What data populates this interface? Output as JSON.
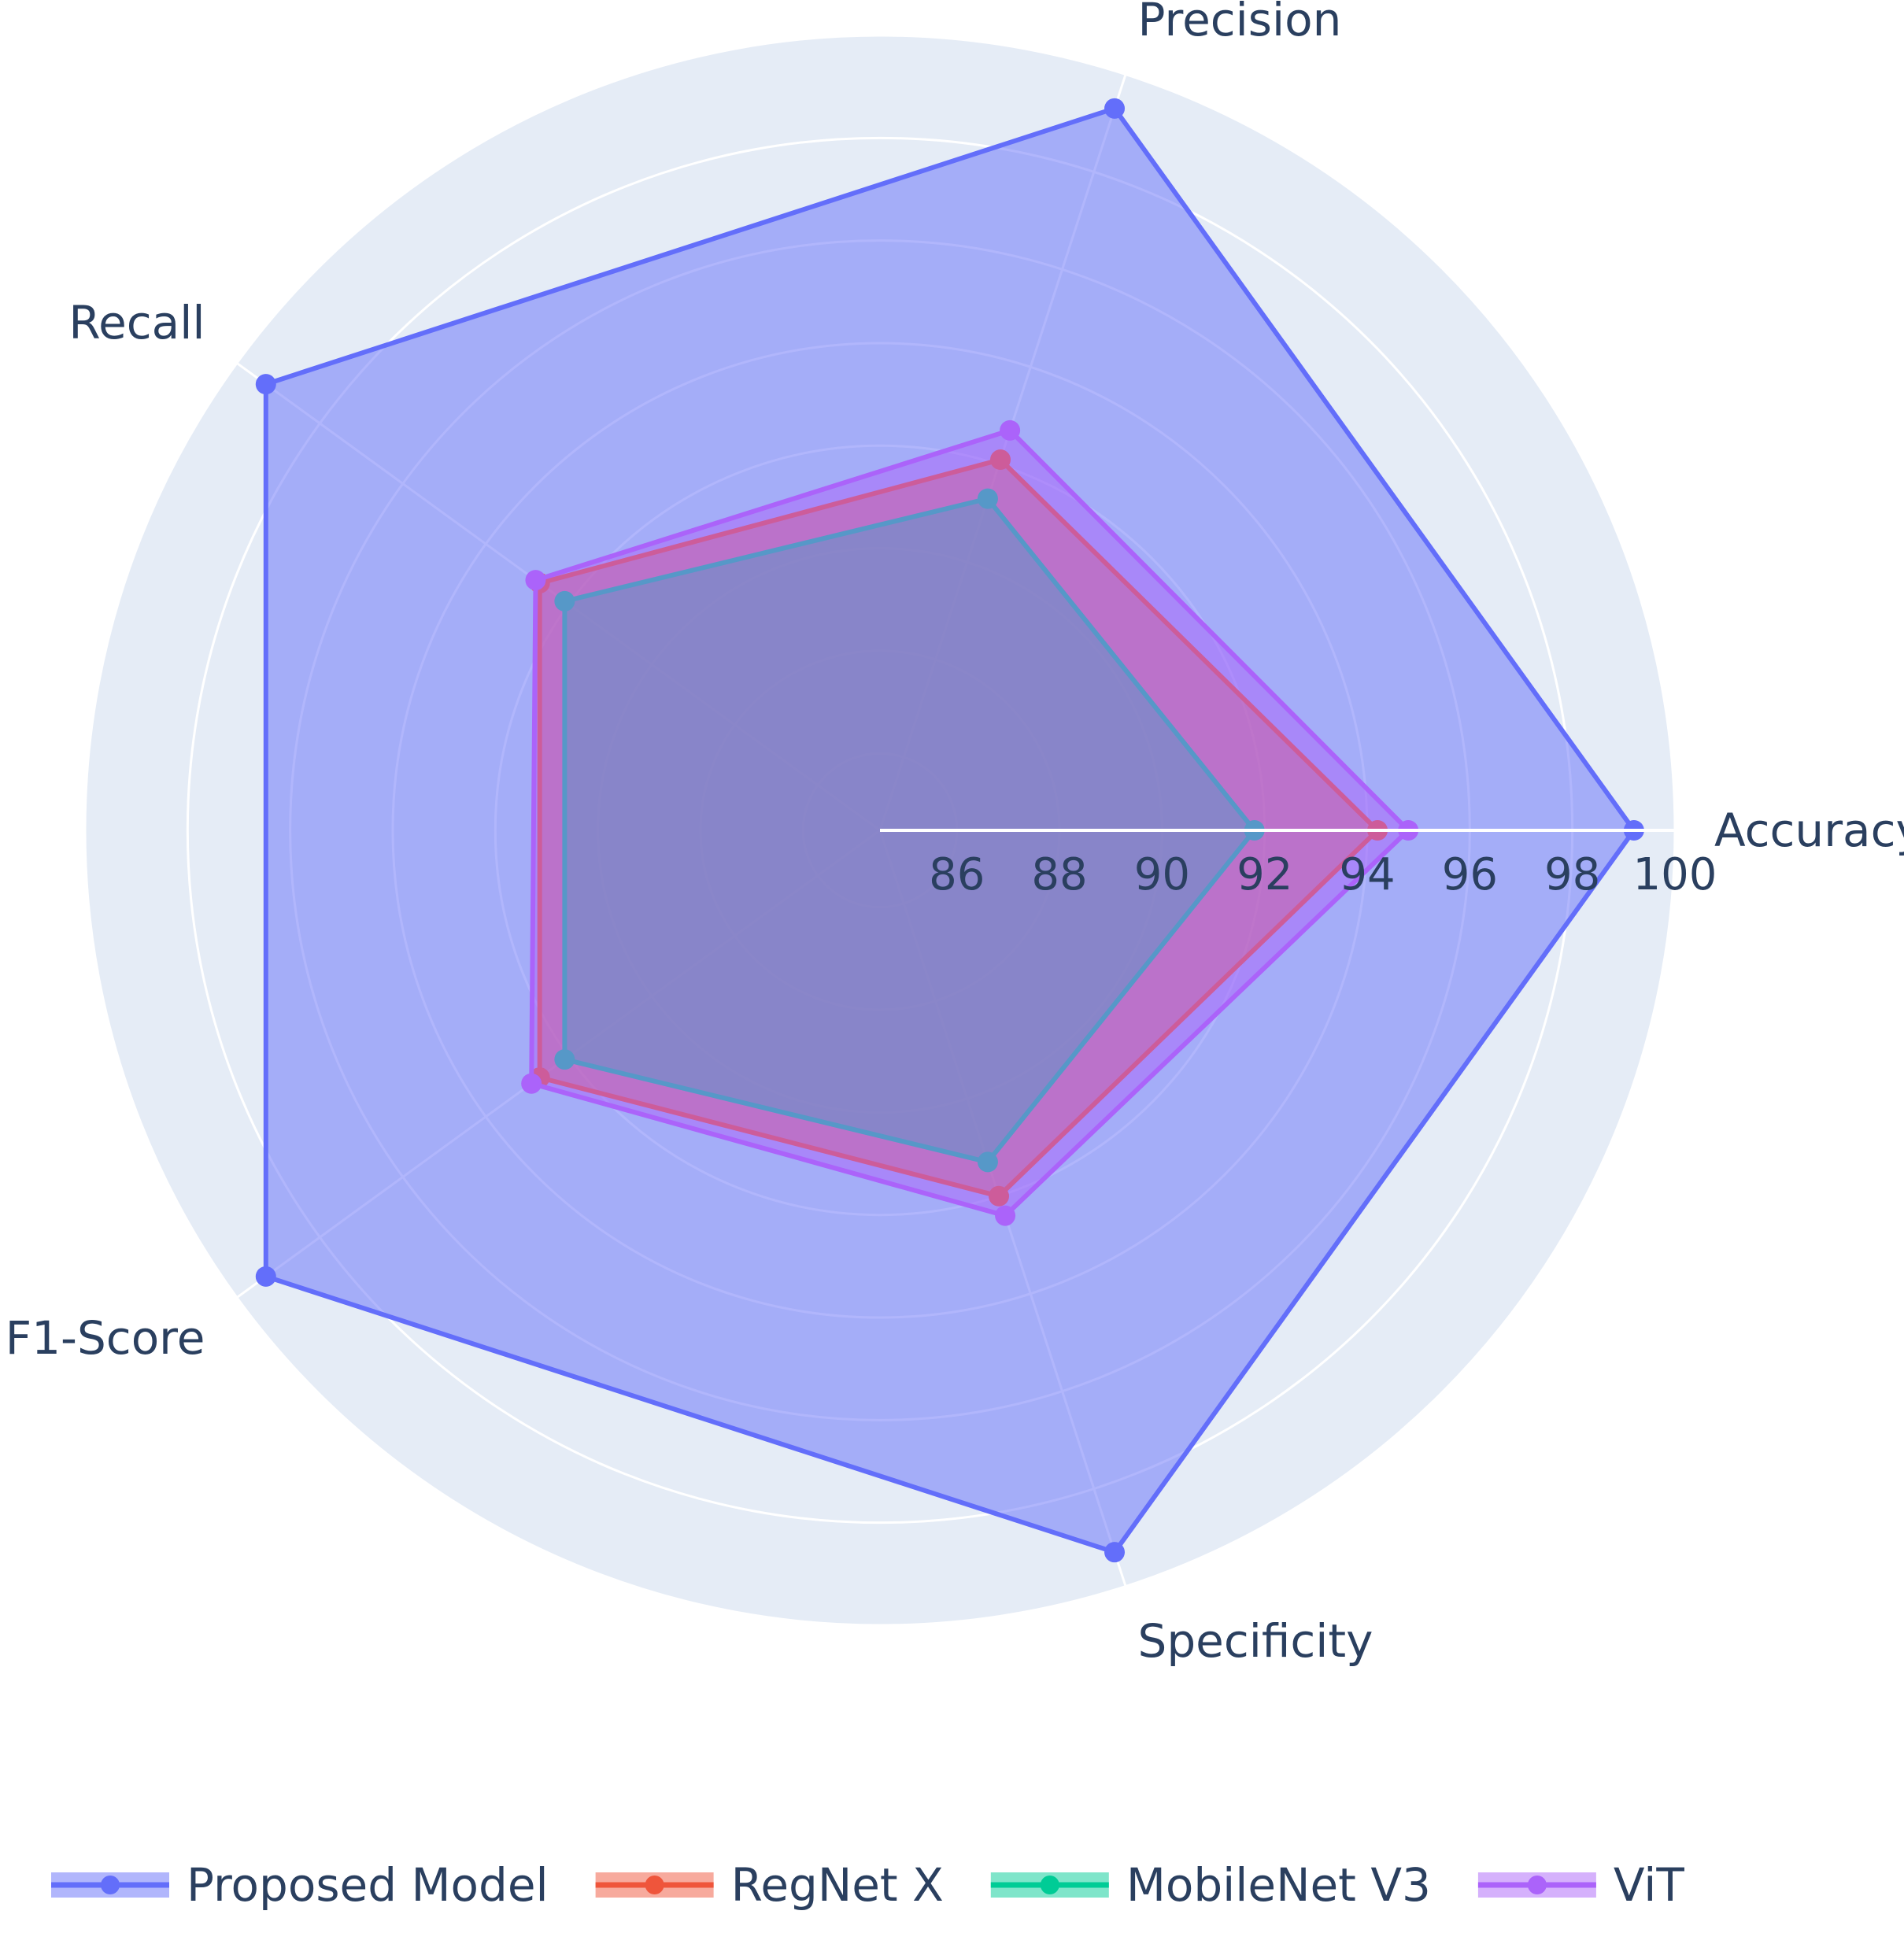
{
  "chart_data": {
    "type": "radar",
    "axes": [
      "Accuracy",
      "Precision",
      "Recall",
      "F1-Score",
      "Specificity"
    ],
    "radial_range": [
      84.5,
      100
    ],
    "radial_ticks": [
      86,
      88,
      90,
      92,
      94,
      96,
      98,
      100
    ],
    "grid": true,
    "legend_position": "bottom",
    "background_color": "#e5ecf6",
    "series": [
      {
        "name": "Proposed Model",
        "color": "#636efa",
        "values": [
          99.2,
          99.3,
          99.3,
          99.3,
          99.3
        ]
      },
      {
        "name": "RegNet X",
        "color": "#ef553b",
        "values": [
          94.2,
          92.1,
          92.7,
          92.7,
          92.0
        ]
      },
      {
        "name": "MobileNet V3",
        "color": "#00cc96",
        "values": [
          91.8,
          91.3,
          92.1,
          92.1,
          91.3
        ]
      },
      {
        "name": "ViT",
        "color": "#ab63fa",
        "values": [
          94.8,
          92.7,
          92.8,
          92.9,
          92.4
        ]
      }
    ]
  }
}
